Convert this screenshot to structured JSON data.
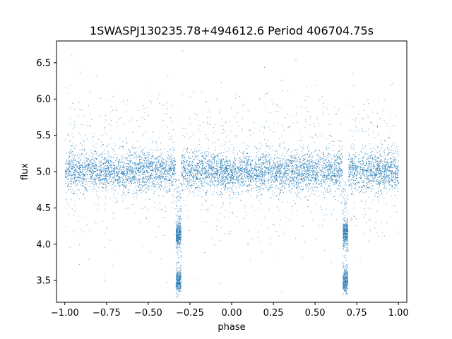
{
  "chart_data": {
    "type": "scatter",
    "title": "1SWASPJ130235.78+494612.6 Period 406704.75s",
    "xlabel": "phase",
    "ylabel": "flux",
    "xlim": [
      -1.05,
      1.05
    ],
    "ylim": [
      3.2,
      6.8
    ],
    "x_ticks": [
      -1.0,
      -0.75,
      -0.5,
      -0.25,
      0.0,
      0.25,
      0.5,
      0.75,
      1.0
    ],
    "x_tick_labels": [
      "−1.00",
      "−0.75",
      "−0.50",
      "−0.25",
      "0.00",
      "0.25",
      "0.50",
      "0.75",
      "1.00"
    ],
    "y_ticks": [
      3.5,
      4.0,
      4.5,
      5.0,
      5.5,
      6.0,
      6.5
    ],
    "y_tick_labels": [
      "3.5",
      "4.0",
      "4.5",
      "5.0",
      "5.5",
      "6.0",
      "6.5"
    ],
    "grid": false,
    "point_color": "#1f77b4",
    "series": [
      {
        "description_of_shape": "folded light curve: dense band at flux ~5.0 across phase, with eclipses near phase -0.32 and 0.68",
        "baseline_flux": 5.0,
        "baseline_scatter": 0.15,
        "eclipse_phases": [
          -0.32,
          0.68
        ],
        "eclipse_flux_levels": [
          4.15,
          3.45
        ],
        "x": [
          -1.0,
          -0.9,
          -0.8,
          -0.7,
          -0.6,
          -0.5,
          -0.4,
          -0.32,
          -0.3,
          -0.32,
          -0.2,
          -0.1,
          0.0,
          0.1,
          0.2,
          0.3,
          0.4,
          0.5,
          0.6,
          0.68,
          0.7,
          0.68,
          0.8,
          0.9,
          1.0
        ],
        "y": [
          5.0,
          5.02,
          4.98,
          5.03,
          4.99,
          5.01,
          4.97,
          4.15,
          4.2,
          3.45,
          5.0,
          4.99,
          5.02,
          4.98,
          5.01,
          5.0,
          4.98,
          5.02,
          4.99,
          4.15,
          4.2,
          3.45,
          5.0,
          5.01,
          4.99
        ]
      }
    ]
  }
}
